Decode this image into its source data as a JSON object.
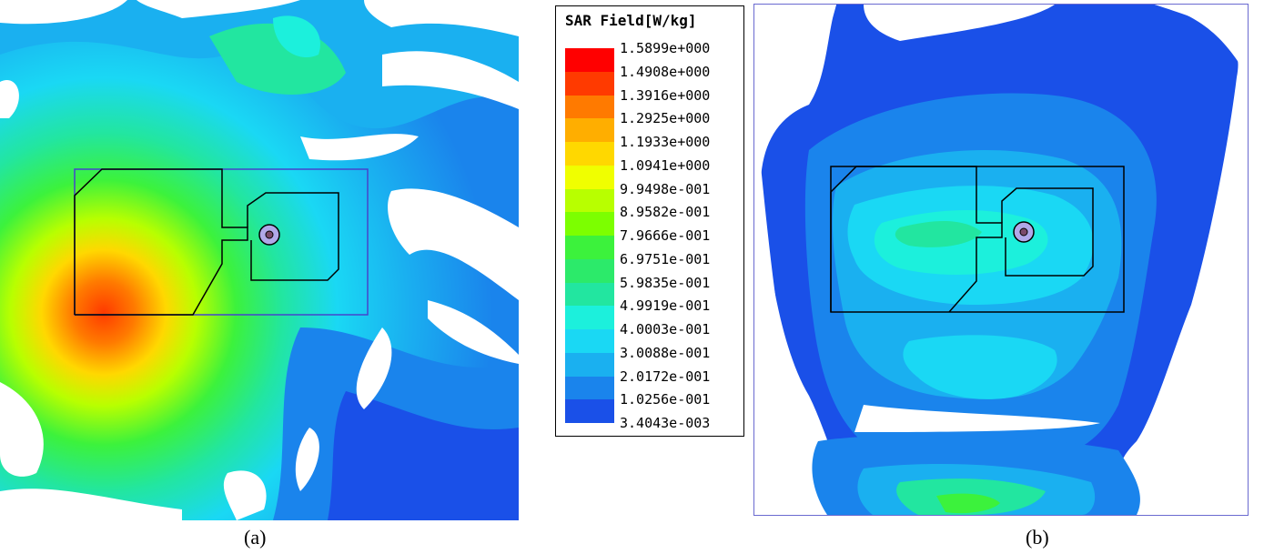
{
  "legend": {
    "title": "SAR Field[W/kg]",
    "ticks": [
      "1.5899e+000",
      "1.4908e+000",
      "1.3916e+000",
      "1.2925e+000",
      "1.1933e+000",
      "1.0941e+000",
      "9.9498e-001",
      "8.9582e-001",
      "7.9666e-001",
      "6.9751e-001",
      "5.9835e-001",
      "4.9919e-001",
      "4.0003e-001",
      "3.0088e-001",
      "2.0172e-001",
      "1.0256e-001",
      "3.4043e-003"
    ],
    "colors": [
      "#ff0000",
      "#ff3a00",
      "#ff7a00",
      "#ffae00",
      "#ffd800",
      "#f0ff00",
      "#b8ff00",
      "#7cff00",
      "#3cf23c",
      "#2cea6a",
      "#22e6a0",
      "#1cf0dc",
      "#1ad8f4",
      "#1ab0f0",
      "#1a84ec",
      "#1a50e8"
    ]
  },
  "captions": {
    "a": "(a)",
    "b": "(b)"
  }
}
